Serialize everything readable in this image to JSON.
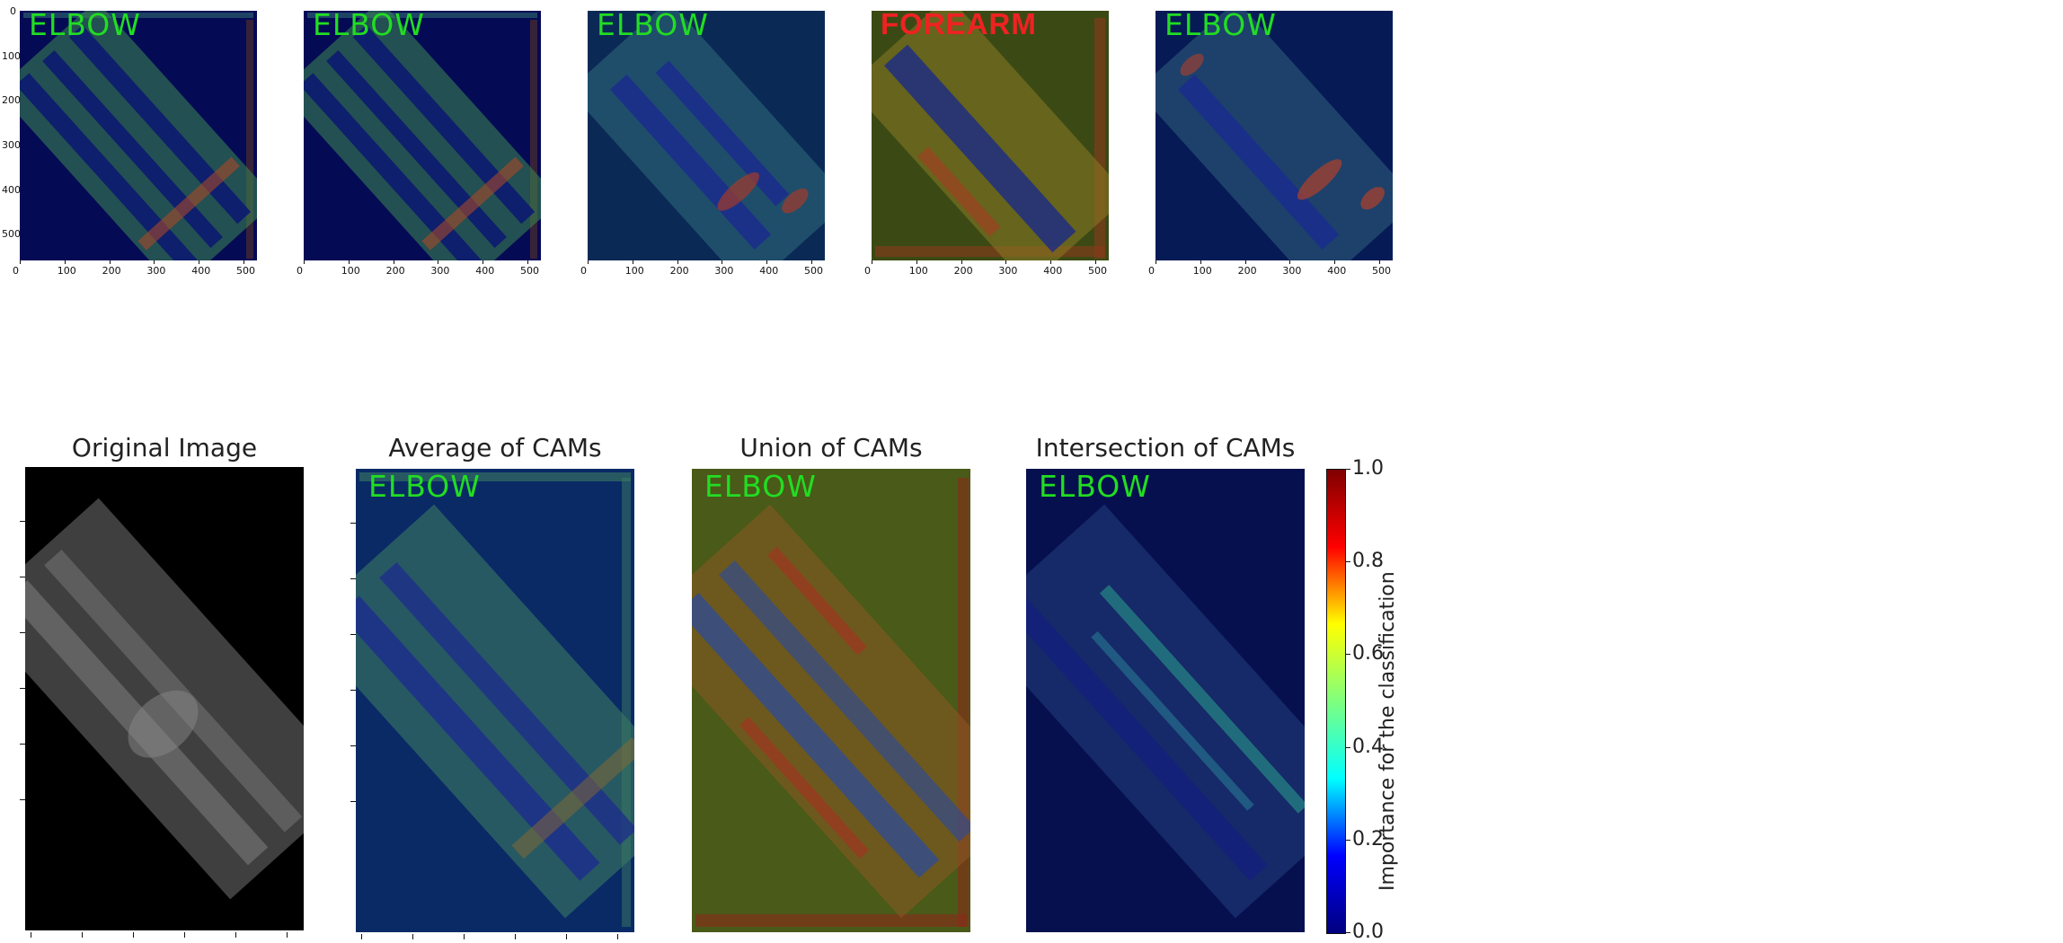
{
  "top_panels": [
    {
      "label": "ELBOW",
      "label_color": "#22dd22",
      "tint": "#050a55",
      "glow": "#3c8a50"
    },
    {
      "label": "ELBOW",
      "label_color": "#22dd22",
      "tint": "#050a55",
      "glow": "#3c8a50"
    },
    {
      "label": "ELBOW",
      "label_color": "#22dd22",
      "tint": "#0a2a55",
      "glow": "#3a7a88"
    },
    {
      "label": "FOREARM",
      "label_color": "#ee2222",
      "tint": "#3b4a14",
      "glow": "#8a7a24"
    },
    {
      "label": "ELBOW",
      "label_color": "#22dd22",
      "tint": "#061a55",
      "glow": "#3a7088"
    }
  ],
  "top_x_ticks": [
    "0",
    "100",
    "200",
    "300",
    "400",
    "500"
  ],
  "top_y_ticks": [
    "0",
    "100",
    "200",
    "300",
    "400",
    "500"
  ],
  "bottom_panels": [
    {
      "title": "Original Image",
      "label": "",
      "tint": "#000000",
      "glow": "#555555"
    },
    {
      "title": "Average of CAMs",
      "label": "ELBOW",
      "label_color": "#22dd22",
      "tint": "#0a2a66",
      "glow": "#3a7a60"
    },
    {
      "title": "Union of CAMs",
      "label": "ELBOW",
      "label_color": "#22dd22",
      "tint": "#4a5a18",
      "glow": "#8a5a24"
    },
    {
      "title": "Intersection of CAMs",
      "label": "ELBOW",
      "label_color": "#22dd22",
      "tint": "#06104e",
      "glow": "#2a4a8a"
    }
  ],
  "colorbar": {
    "label": "Importance for the classification",
    "ticks": [
      "0.0",
      "0.2",
      "0.4",
      "0.6",
      "0.8",
      "1.0"
    ],
    "stops": [
      "#00007f",
      "#0000ff",
      "#00ffff",
      "#7fff7f",
      "#ffff00",
      "#ff0000",
      "#7f0000"
    ]
  }
}
